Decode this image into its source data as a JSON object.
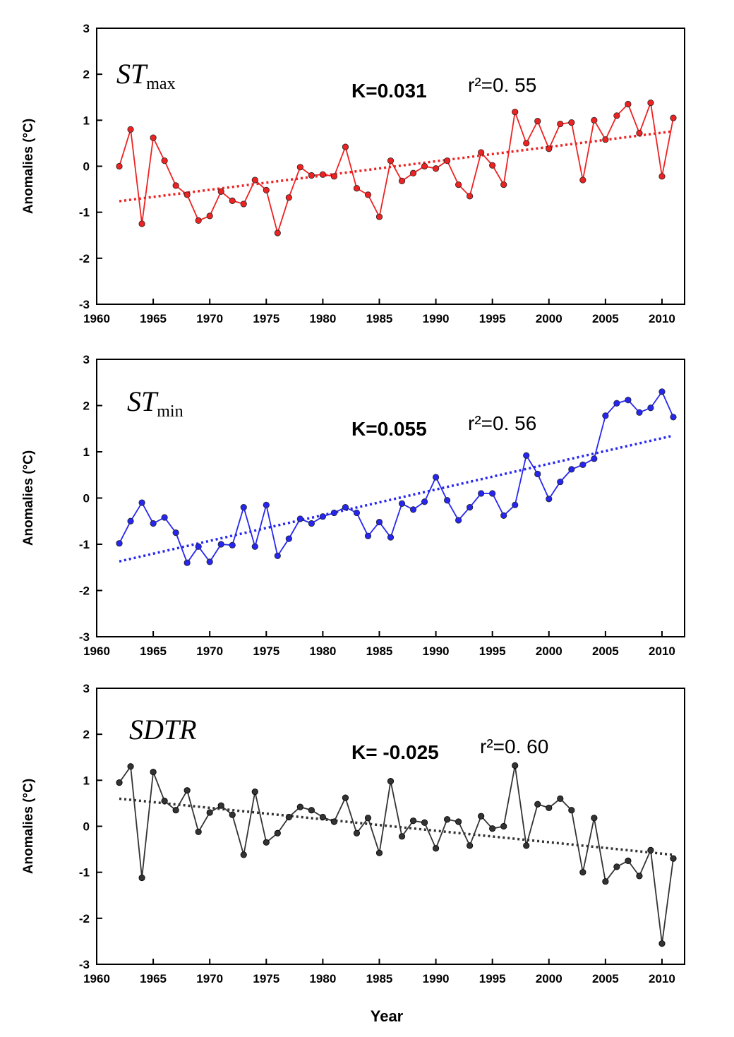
{
  "xlabel": "Year",
  "chart_data": [
    {
      "type": "line",
      "title_main": "ST",
      "title_sub": "max",
      "slope_label": "K=0.031",
      "r2_label": "r²=0. 55",
      "ylabel": "Anomalies (°C)",
      "xlim": [
        1960,
        2012
      ],
      "ylim": [
        -3,
        3
      ],
      "xticks": [
        1960,
        1965,
        1970,
        1975,
        1980,
        1985,
        1990,
        1995,
        2000,
        2005,
        2010
      ],
      "yticks": [
        -3,
        -2,
        -1,
        0,
        1,
        2,
        3
      ],
      "color": "#ee2222",
      "series": [
        {
          "x": [
            1962,
            1963,
            1964,
            1965,
            1966,
            1967,
            1968,
            1969,
            1970,
            1971,
            1972,
            1973,
            1974,
            1975,
            1976,
            1977,
            1978,
            1979,
            1980,
            1981,
            1982,
            1983,
            1984,
            1985,
            1986,
            1987,
            1988,
            1989,
            1990,
            1991,
            1992,
            1993,
            1994,
            1995,
            1996,
            1997,
            1998,
            1999,
            2000,
            2001,
            2002,
            2003,
            2004,
            2005,
            2006,
            2007,
            2008,
            2009,
            2010,
            2011
          ],
          "values": [
            0.0,
            0.8,
            -1.25,
            0.62,
            0.12,
            -0.42,
            -0.62,
            -1.18,
            -1.08,
            -0.55,
            -0.75,
            -0.82,
            -0.3,
            -0.52,
            -1.45,
            -0.68,
            -0.02,
            -0.2,
            -0.18,
            -0.22,
            0.42,
            -0.48,
            -0.62,
            -1.1,
            0.12,
            -0.32,
            -0.15,
            0.0,
            -0.05,
            0.12,
            -0.4,
            -0.65,
            0.3,
            0.02,
            -0.4,
            1.18,
            0.5,
            0.98,
            0.38,
            0.92,
            0.95,
            -0.3,
            1.0,
            0.58,
            1.1,
            1.35,
            0.72,
            1.38,
            -0.22,
            1.05
          ]
        }
      ],
      "trend": {
        "x": [
          1962,
          2011
        ],
        "values": [
          -0.76,
          0.76
        ]
      }
    },
    {
      "type": "line",
      "title_main": "ST",
      "title_sub": "min",
      "slope_label": "K=0.055",
      "r2_label": "r²=0. 56",
      "ylabel": "Anomalies (°C)",
      "xlim": [
        1960,
        2012
      ],
      "ylim": [
        -3,
        3
      ],
      "xticks": [
        1960,
        1965,
        1970,
        1975,
        1980,
        1985,
        1990,
        1995,
        2000,
        2005,
        2010
      ],
      "yticks": [
        -3,
        -2,
        -1,
        0,
        1,
        2,
        3
      ],
      "color": "#2626f0",
      "series": [
        {
          "x": [
            1962,
            1963,
            1964,
            1965,
            1966,
            1967,
            1968,
            1969,
            1970,
            1971,
            1972,
            1973,
            1974,
            1975,
            1976,
            1977,
            1978,
            1979,
            1980,
            1981,
            1982,
            1983,
            1984,
            1985,
            1986,
            1987,
            1988,
            1989,
            1990,
            1991,
            1992,
            1993,
            1994,
            1995,
            1996,
            1997,
            1998,
            1999,
            2000,
            2001,
            2002,
            2003,
            2004,
            2005,
            2006,
            2007,
            2008,
            2009,
            2010,
            2011
          ],
          "values": [
            -0.98,
            -0.5,
            -0.1,
            -0.55,
            -0.42,
            -0.75,
            -1.4,
            -1.05,
            -1.38,
            -1.0,
            -1.02,
            -0.2,
            -1.05,
            -0.15,
            -1.25,
            -0.88,
            -0.45,
            -0.55,
            -0.4,
            -0.32,
            -0.2,
            -0.32,
            -0.82,
            -0.52,
            -0.85,
            -0.12,
            -0.25,
            -0.08,
            0.45,
            -0.05,
            -0.48,
            -0.2,
            0.1,
            0.1,
            -0.38,
            -0.15,
            0.92,
            0.52,
            -0.02,
            0.35,
            0.62,
            0.72,
            0.85,
            1.78,
            2.05,
            2.12,
            1.85,
            1.95,
            2.3,
            1.75
          ]
        }
      ],
      "trend": {
        "x": [
          1962,
          2011
        ],
        "values": [
          -1.37,
          1.35
        ]
      }
    },
    {
      "type": "line",
      "title_main": "SDTR",
      "title_sub": "",
      "slope_label": "K= -0.025",
      "r2_label": "r²=0. 60",
      "ylabel": "Anomalies (°C)",
      "xlim": [
        1960,
        2012
      ],
      "ylim": [
        -3,
        3
      ],
      "xticks": [
        1960,
        1965,
        1970,
        1975,
        1980,
        1985,
        1990,
        1995,
        2000,
        2005,
        2010
      ],
      "yticks": [
        -3,
        -2,
        -1,
        0,
        1,
        2,
        3
      ],
      "color": "#333333",
      "series": [
        {
          "x": [
            1962,
            1963,
            1964,
            1965,
            1966,
            1967,
            1968,
            1969,
            1970,
            1971,
            1972,
            1973,
            1974,
            1975,
            1976,
            1977,
            1978,
            1979,
            1980,
            1981,
            1982,
            1983,
            1984,
            1985,
            1986,
            1987,
            1988,
            1989,
            1990,
            1991,
            1992,
            1993,
            1994,
            1995,
            1996,
            1997,
            1998,
            1999,
            2000,
            2001,
            2002,
            2003,
            2004,
            2005,
            2006,
            2007,
            2008,
            2009,
            2010,
            2011
          ],
          "values": [
            0.95,
            1.3,
            -1.12,
            1.18,
            0.55,
            0.35,
            0.78,
            -0.12,
            0.3,
            0.45,
            0.25,
            -0.62,
            0.75,
            -0.35,
            -0.15,
            0.2,
            0.42,
            0.35,
            0.2,
            0.1,
            0.62,
            -0.15,
            0.18,
            -0.58,
            0.98,
            -0.22,
            0.12,
            0.08,
            -0.48,
            0.15,
            0.1,
            -0.42,
            0.22,
            -0.05,
            0.0,
            1.32,
            -0.42,
            0.48,
            0.4,
            0.6,
            0.35,
            -1.0,
            0.18,
            -1.2,
            -0.88,
            -0.75,
            -1.08,
            -0.52,
            -2.55,
            -0.7
          ]
        }
      ],
      "trend": {
        "x": [
          1962,
          2011
        ],
        "values": [
          0.6,
          -0.62
        ]
      }
    }
  ]
}
